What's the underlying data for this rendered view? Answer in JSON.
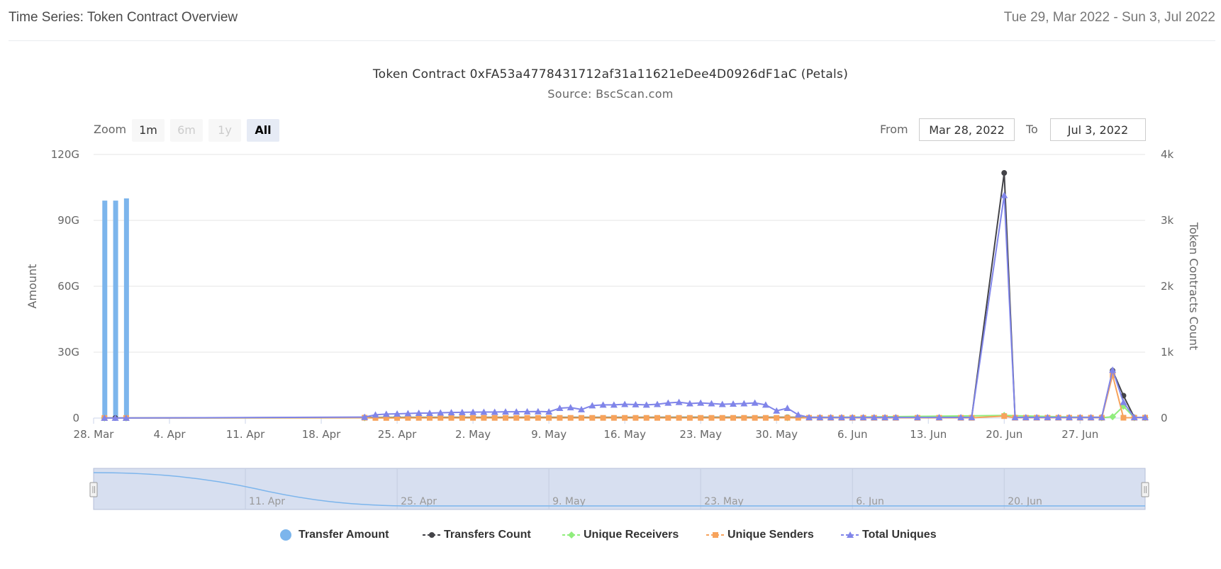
{
  "header": {
    "title": "Time Series: Token Contract Overview",
    "date_range": "Tue 29, Mar 2022 - Sun 3, Jul 2022"
  },
  "chart": {
    "title": "Token Contract 0xFA53a4778431712af31a11621eDee4D0926dF1aC (Petals)",
    "subtitle": "Source: BscScan.com"
  },
  "zoom": {
    "label": "Zoom",
    "buttons": [
      "1m",
      "6m",
      "1y",
      "All"
    ],
    "active": "All"
  },
  "range": {
    "from_label": "From",
    "from_value": "Mar 28, 2022",
    "to_label": "To",
    "to_value": "Jul 3, 2022"
  },
  "colors": {
    "transfer_amount": "#7cb5ec",
    "transfers_count": "#434348",
    "unique_receivers": "#90ed7d",
    "unique_senders": "#f7a35c",
    "total_uniques": "#8085e9",
    "navigator_mask": "#d7dff0"
  },
  "chart_data": {
    "type": "line",
    "title": "Token Contract 0xFA53a4778431712af31a11621eDee4D0926dF1aC (Petals)",
    "subtitle": "Source: BscScan.com",
    "x_type": "date",
    "x_range": [
      "2022-03-28",
      "2022-07-03"
    ],
    "x_tick_labels": [
      "28. Mar",
      "4. Apr",
      "11. Apr",
      "18. Apr",
      "25. Apr",
      "2. May",
      "9. May",
      "16. May",
      "23. May",
      "30. May",
      "6. Jun",
      "13. Jun",
      "20. Jun",
      "27. Jun"
    ],
    "y_left": {
      "label": "Amount",
      "ticks": [
        "0",
        "30G",
        "60G",
        "90G",
        "120G"
      ],
      "range": [
        0,
        120000000000
      ]
    },
    "y_right": {
      "label": "Token Contracts Count",
      "ticks": [
        "0",
        "1k",
        "2k",
        "3k",
        "4k"
      ],
      "range": [
        0,
        4000
      ]
    },
    "navigator_labels": [
      "11. Apr",
      "25. Apr",
      "9. May",
      "23. May",
      "6. Jun",
      "20. Jun"
    ],
    "grid": true,
    "legend_position": "bottom",
    "legend": [
      "Transfer Amount",
      "Transfers Count",
      "Unique Receivers",
      "Unique Senders",
      "Total Uniques"
    ],
    "bars": {
      "name": "Transfer Amount",
      "axis": "left",
      "points": [
        [
          "2022-03-29",
          99000000000
        ],
        [
          "2022-03-30",
          99000000000
        ],
        [
          "2022-03-31",
          100000000000
        ]
      ]
    },
    "series": [
      {
        "name": "Transfers Count",
        "axis": "right",
        "marker": "circle",
        "points": [
          [
            "2022-03-29",
            1
          ],
          [
            "2022-03-30",
            1
          ],
          [
            "2022-03-31",
            1
          ],
          [
            "2022-04-22",
            10
          ],
          [
            "2022-05-31",
            12
          ],
          [
            "2022-06-17",
            10
          ],
          [
            "2022-06-20",
            3720
          ],
          [
            "2022-06-21",
            10
          ],
          [
            "2022-06-29",
            12
          ],
          [
            "2022-06-30",
            720
          ],
          [
            "2022-07-01",
            340
          ],
          [
            "2022-07-02",
            10
          ],
          [
            "2022-07-03",
            8
          ]
        ]
      },
      {
        "name": "Unique Receivers",
        "axis": "right",
        "marker": "diamond",
        "points": [
          [
            "2022-03-29",
            1
          ],
          [
            "2022-03-31",
            1
          ],
          [
            "2022-04-22",
            4
          ],
          [
            "2022-05-31",
            5
          ],
          [
            "2022-06-20",
            40
          ],
          [
            "2022-06-29",
            5
          ],
          [
            "2022-06-30",
            20
          ],
          [
            "2022-07-01",
            180
          ],
          [
            "2022-07-02",
            5
          ],
          [
            "2022-07-03",
            5
          ]
        ]
      },
      {
        "name": "Unique Senders",
        "axis": "right",
        "marker": "square",
        "points": [
          [
            "2022-03-29",
            1
          ],
          [
            "2022-03-31",
            1
          ],
          [
            "2022-04-22",
            5
          ],
          [
            "2022-04-23",
            2
          ],
          [
            "2022-04-24",
            2
          ],
          [
            "2022-04-25",
            2
          ],
          [
            "2022-04-26",
            3
          ],
          [
            "2022-04-27",
            3
          ],
          [
            "2022-04-28",
            3
          ],
          [
            "2022-04-29",
            3
          ],
          [
            "2022-04-30",
            3
          ],
          [
            "2022-05-01",
            3
          ],
          [
            "2022-05-02",
            3
          ],
          [
            "2022-05-03",
            3
          ],
          [
            "2022-05-04",
            3
          ],
          [
            "2022-05-05",
            3
          ],
          [
            "2022-05-06",
            3
          ],
          [
            "2022-05-07",
            3
          ],
          [
            "2022-05-08",
            3
          ],
          [
            "2022-05-09",
            3
          ],
          [
            "2022-05-10",
            3
          ],
          [
            "2022-05-11",
            3
          ],
          [
            "2022-05-12",
            3
          ],
          [
            "2022-05-13",
            3
          ],
          [
            "2022-05-14",
            3
          ],
          [
            "2022-05-15",
            3
          ],
          [
            "2022-05-16",
            3
          ],
          [
            "2022-05-17",
            3
          ],
          [
            "2022-05-18",
            3
          ],
          [
            "2022-05-19",
            3
          ],
          [
            "2022-05-20",
            3
          ],
          [
            "2022-05-21",
            3
          ],
          [
            "2022-05-22",
            3
          ],
          [
            "2022-05-23",
            3
          ],
          [
            "2022-05-24",
            3
          ],
          [
            "2022-05-25",
            3
          ],
          [
            "2022-05-26",
            3
          ],
          [
            "2022-05-27",
            3
          ],
          [
            "2022-05-28",
            3
          ],
          [
            "2022-05-29",
            3
          ],
          [
            "2022-05-30",
            3
          ],
          [
            "2022-05-31",
            4
          ],
          [
            "2022-06-01",
            4
          ],
          [
            "2022-06-02",
            4
          ],
          [
            "2022-06-03",
            4
          ],
          [
            "2022-06-04",
            4
          ],
          [
            "2022-06-05",
            4
          ],
          [
            "2022-06-06",
            4
          ],
          [
            "2022-06-07",
            4
          ],
          [
            "2022-06-08",
            4
          ],
          [
            "2022-06-09",
            4
          ],
          [
            "2022-06-10",
            4
          ],
          [
            "2022-06-12",
            4
          ],
          [
            "2022-06-14",
            4
          ],
          [
            "2022-06-16",
            4
          ],
          [
            "2022-06-17",
            4
          ],
          [
            "2022-06-20",
            30
          ],
          [
            "2022-06-21",
            5
          ],
          [
            "2022-06-22",
            5
          ],
          [
            "2022-06-23",
            5
          ],
          [
            "2022-06-24",
            5
          ],
          [
            "2022-06-25",
            5
          ],
          [
            "2022-06-26",
            5
          ],
          [
            "2022-06-27",
            5
          ],
          [
            "2022-06-28",
            5
          ],
          [
            "2022-06-29",
            5
          ],
          [
            "2022-06-30",
            650
          ],
          [
            "2022-07-01",
            5
          ],
          [
            "2022-07-02",
            5
          ],
          [
            "2022-07-03",
            5
          ]
        ]
      },
      {
        "name": "Total Uniques",
        "axis": "right",
        "marker": "triangle",
        "points": [
          [
            "2022-03-29",
            1
          ],
          [
            "2022-03-30",
            1
          ],
          [
            "2022-03-31",
            1
          ],
          [
            "2022-04-22",
            15
          ],
          [
            "2022-04-23",
            50
          ],
          [
            "2022-04-24",
            60
          ],
          [
            "2022-04-25",
            65
          ],
          [
            "2022-04-26",
            70
          ],
          [
            "2022-04-27",
            75
          ],
          [
            "2022-04-28",
            75
          ],
          [
            "2022-04-29",
            80
          ],
          [
            "2022-04-30",
            85
          ],
          [
            "2022-05-01",
            88
          ],
          [
            "2022-05-02",
            90
          ],
          [
            "2022-05-03",
            92
          ],
          [
            "2022-05-04",
            92
          ],
          [
            "2022-05-05",
            95
          ],
          [
            "2022-05-06",
            95
          ],
          [
            "2022-05-07",
            98
          ],
          [
            "2022-05-08",
            100
          ],
          [
            "2022-05-09",
            95
          ],
          [
            "2022-05-10",
            150
          ],
          [
            "2022-05-11",
            160
          ],
          [
            "2022-05-12",
            130
          ],
          [
            "2022-05-13",
            190
          ],
          [
            "2022-05-14",
            200
          ],
          [
            "2022-05-15",
            200
          ],
          [
            "2022-05-16",
            210
          ],
          [
            "2022-05-17",
            205
          ],
          [
            "2022-05-18",
            200
          ],
          [
            "2022-05-19",
            210
          ],
          [
            "2022-05-20",
            230
          ],
          [
            "2022-05-21",
            240
          ],
          [
            "2022-05-22",
            220
          ],
          [
            "2022-05-23",
            230
          ],
          [
            "2022-05-24",
            220
          ],
          [
            "2022-05-25",
            210
          ],
          [
            "2022-05-26",
            215
          ],
          [
            "2022-05-27",
            220
          ],
          [
            "2022-05-28",
            230
          ],
          [
            "2022-05-29",
            200
          ],
          [
            "2022-05-30",
            110
          ],
          [
            "2022-05-31",
            150
          ],
          [
            "2022-06-01",
            50
          ],
          [
            "2022-06-02",
            10
          ],
          [
            "2022-06-03",
            10
          ],
          [
            "2022-06-04",
            10
          ],
          [
            "2022-06-05",
            10
          ],
          [
            "2022-06-06",
            10
          ],
          [
            "2022-06-07",
            10
          ],
          [
            "2022-06-08",
            10
          ],
          [
            "2022-06-09",
            10
          ],
          [
            "2022-06-10",
            10
          ],
          [
            "2022-06-12",
            10
          ],
          [
            "2022-06-14",
            10
          ],
          [
            "2022-06-16",
            10
          ],
          [
            "2022-06-17",
            10
          ],
          [
            "2022-06-20",
            3380
          ],
          [
            "2022-06-21",
            10
          ],
          [
            "2022-06-22",
            10
          ],
          [
            "2022-06-23",
            10
          ],
          [
            "2022-06-24",
            10
          ],
          [
            "2022-06-25",
            10
          ],
          [
            "2022-06-26",
            10
          ],
          [
            "2022-06-27",
            10
          ],
          [
            "2022-06-28",
            10
          ],
          [
            "2022-06-29",
            10
          ],
          [
            "2022-06-30",
            730
          ],
          [
            "2022-07-01",
            240
          ],
          [
            "2022-07-02",
            10
          ],
          [
            "2022-07-03",
            10
          ]
        ]
      }
    ]
  }
}
